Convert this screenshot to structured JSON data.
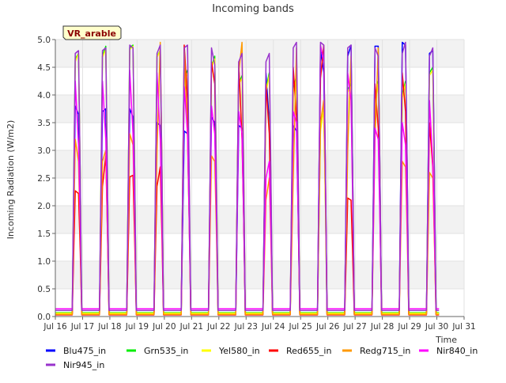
{
  "chart_data": {
    "type": "line",
    "title": "Incoming bands",
    "xlabel": "Time",
    "ylabel": "Incoming Radiation (W/m2)",
    "badge": "VR_arable",
    "xlim": [
      16,
      31
    ],
    "ylim": [
      0,
      5
    ],
    "x_ticks": [
      {
        "value": 16,
        "label": "Jul 16"
      },
      {
        "value": 17,
        "label": "Jul 17"
      },
      {
        "value": 18,
        "label": "Jul 18"
      },
      {
        "value": 19,
        "label": "Jul 19"
      },
      {
        "value": 20,
        "label": "Jul 20"
      },
      {
        "value": 21,
        "label": "Jul 21"
      },
      {
        "value": 22,
        "label": "Jul 22"
      },
      {
        "value": 23,
        "label": "Jul 23"
      },
      {
        "value": 24,
        "label": "Jul 24"
      },
      {
        "value": 25,
        "label": "Jul 25"
      },
      {
        "value": 26,
        "label": "Jul 26"
      },
      {
        "value": 27,
        "label": "Jul 27"
      },
      {
        "value": 28,
        "label": "Jul 28"
      },
      {
        "value": 29,
        "label": "Jul 29"
      },
      {
        "value": 30,
        "label": "Jul 30"
      },
      {
        "value": 31,
        "label": "Jul 31"
      }
    ],
    "y_ticks": [
      {
        "value": 0.0,
        "label": "0.0"
      },
      {
        "value": 0.5,
        "label": "0.5"
      },
      {
        "value": 1.0,
        "label": "1.0"
      },
      {
        "value": 1.5,
        "label": "1.5"
      },
      {
        "value": 2.0,
        "label": "2.0"
      },
      {
        "value": 2.5,
        "label": "2.5"
      },
      {
        "value": 3.0,
        "label": "3.0"
      },
      {
        "value": 3.5,
        "label": "3.5"
      },
      {
        "value": 4.0,
        "label": "4.0"
      },
      {
        "value": 4.5,
        "label": "4.5"
      },
      {
        "value": 5.0,
        "label": "5.0"
      }
    ],
    "days": [
      16.8,
      17.8,
      18.8,
      19.8,
      20.8,
      21.8,
      22.8,
      23.8,
      24.8,
      25.8,
      26.8,
      27.8,
      28.8,
      29.8
    ],
    "series": [
      {
        "name": "Blu475_in",
        "color": "#0000ff",
        "night": 0.05,
        "peaks": [
          [
            3.8,
            3.65
          ],
          [
            3.7,
            3.75
          ],
          [
            3.75,
            3.6
          ],
          [
            3.5,
            3.45
          ],
          [
            3.35,
            3.3
          ],
          [
            3.6,
            3.5
          ],
          [
            3.45,
            3.4
          ],
          [
            4.4,
            3.5
          ],
          [
            3.45,
            3.35
          ],
          [
            4.8,
            4.4
          ],
          [
            4.7,
            4.9
          ],
          [
            4.88,
            4.88
          ],
          [
            4.95,
            4.9
          ],
          [
            4.75,
            4.8
          ]
        ]
      },
      {
        "name": "Grn535_in",
        "color": "#00ee00",
        "night": 0.07,
        "peaks": [
          [
            4.65,
            4.75
          ],
          [
            4.7,
            4.88
          ],
          [
            4.85,
            4.9
          ],
          [
            4.7,
            4.8
          ],
          [
            4.3,
            4.45
          ],
          [
            4.5,
            4.7
          ],
          [
            4.2,
            4.35
          ],
          [
            4.1,
            4.4
          ],
          [
            4.1,
            4.35
          ],
          [
            3.4,
            3.8
          ],
          [
            4.1,
            4.2
          ],
          [
            3.9,
            4.25
          ],
          [
            4.0,
            4.25
          ],
          [
            4.4,
            4.5
          ]
        ]
      },
      {
        "name": "Yel580_in",
        "color": "#ffff00",
        "night": 0.06,
        "peaks": [
          [
            4.6,
            4.75
          ],
          [
            4.68,
            4.82
          ],
          [
            4.82,
            4.88
          ],
          [
            4.68,
            4.8
          ],
          [
            4.25,
            4.4
          ],
          [
            4.5,
            4.65
          ],
          [
            4.2,
            4.3
          ],
          [
            4.05,
            4.35
          ],
          [
            4.05,
            4.3
          ],
          [
            3.35,
            3.75
          ],
          [
            4.05,
            4.15
          ],
          [
            3.85,
            4.2
          ],
          [
            3.95,
            4.2
          ],
          [
            4.35,
            4.45
          ]
        ]
      },
      {
        "name": "Red655_in",
        "color": "#ff0000",
        "night": 0.03,
        "peaks": [
          [
            2.27,
            2.22
          ],
          [
            2.35,
            2.9
          ],
          [
            2.52,
            2.55
          ],
          [
            2.35,
            2.7
          ],
          [
            4.9,
            3.9
          ],
          [
            4.6,
            4.2
          ],
          [
            4.6,
            3.2
          ],
          [
            4.2,
            3.3
          ],
          [
            4.5,
            3.6
          ],
          [
            4.3,
            4.9
          ],
          [
            2.14,
            2.1
          ],
          [
            4.2,
            3.4
          ],
          [
            4.4,
            3.7
          ],
          [
            3.5,
            2.7
          ]
        ]
      },
      {
        "name": "Redg715_in",
        "color": "#ff9900",
        "night": 0.04,
        "peaks": [
          [
            3.2,
            2.8
          ],
          [
            2.8,
            3.0
          ],
          [
            3.3,
            3.1
          ],
          [
            3.0,
            4.95
          ],
          [
            4.8,
            3.2
          ],
          [
            2.9,
            2.8
          ],
          [
            4.4,
            4.95
          ],
          [
            2.1,
            2.5
          ],
          [
            2.5,
            4.85
          ],
          [
            3.5,
            3.9
          ],
          [
            3.0,
            4.7
          ],
          [
            3.2,
            4.85
          ],
          [
            2.8,
            2.7
          ],
          [
            2.6,
            2.5
          ]
        ]
      },
      {
        "name": "Nir840_in",
        "color": "#ff00ff",
        "night": 0.14,
        "peaks": [
          [
            4.25,
            3.1
          ],
          [
            4.25,
            3.2
          ],
          [
            4.45,
            3.3
          ],
          [
            4.4,
            3.2
          ],
          [
            4.15,
            3.3
          ],
          [
            3.8,
            3.3
          ],
          [
            3.7,
            3.3
          ],
          [
            2.5,
            2.8
          ],
          [
            3.7,
            3.5
          ],
          [
            4.9,
            4.6
          ],
          [
            4.4,
            3.9
          ],
          [
            3.4,
            3.2
          ],
          [
            3.5,
            3.1
          ],
          [
            3.9,
            2.8
          ]
        ]
      },
      {
        "name": "Nir945_in",
        "color": "#9933cc",
        "night": 0.11,
        "peaks": [
          [
            4.75,
            4.8
          ],
          [
            4.8,
            4.85
          ],
          [
            4.9,
            4.85
          ],
          [
            4.75,
            4.9
          ],
          [
            4.85,
            4.9
          ],
          [
            4.85,
            4.55
          ],
          [
            4.6,
            4.75
          ],
          [
            4.6,
            4.75
          ],
          [
            4.85,
            4.95
          ],
          [
            4.95,
            4.9
          ],
          [
            4.85,
            4.9
          ],
          [
            4.85,
            4.7
          ],
          [
            4.75,
            4.95
          ],
          [
            4.7,
            4.85
          ]
        ]
      }
    ]
  }
}
